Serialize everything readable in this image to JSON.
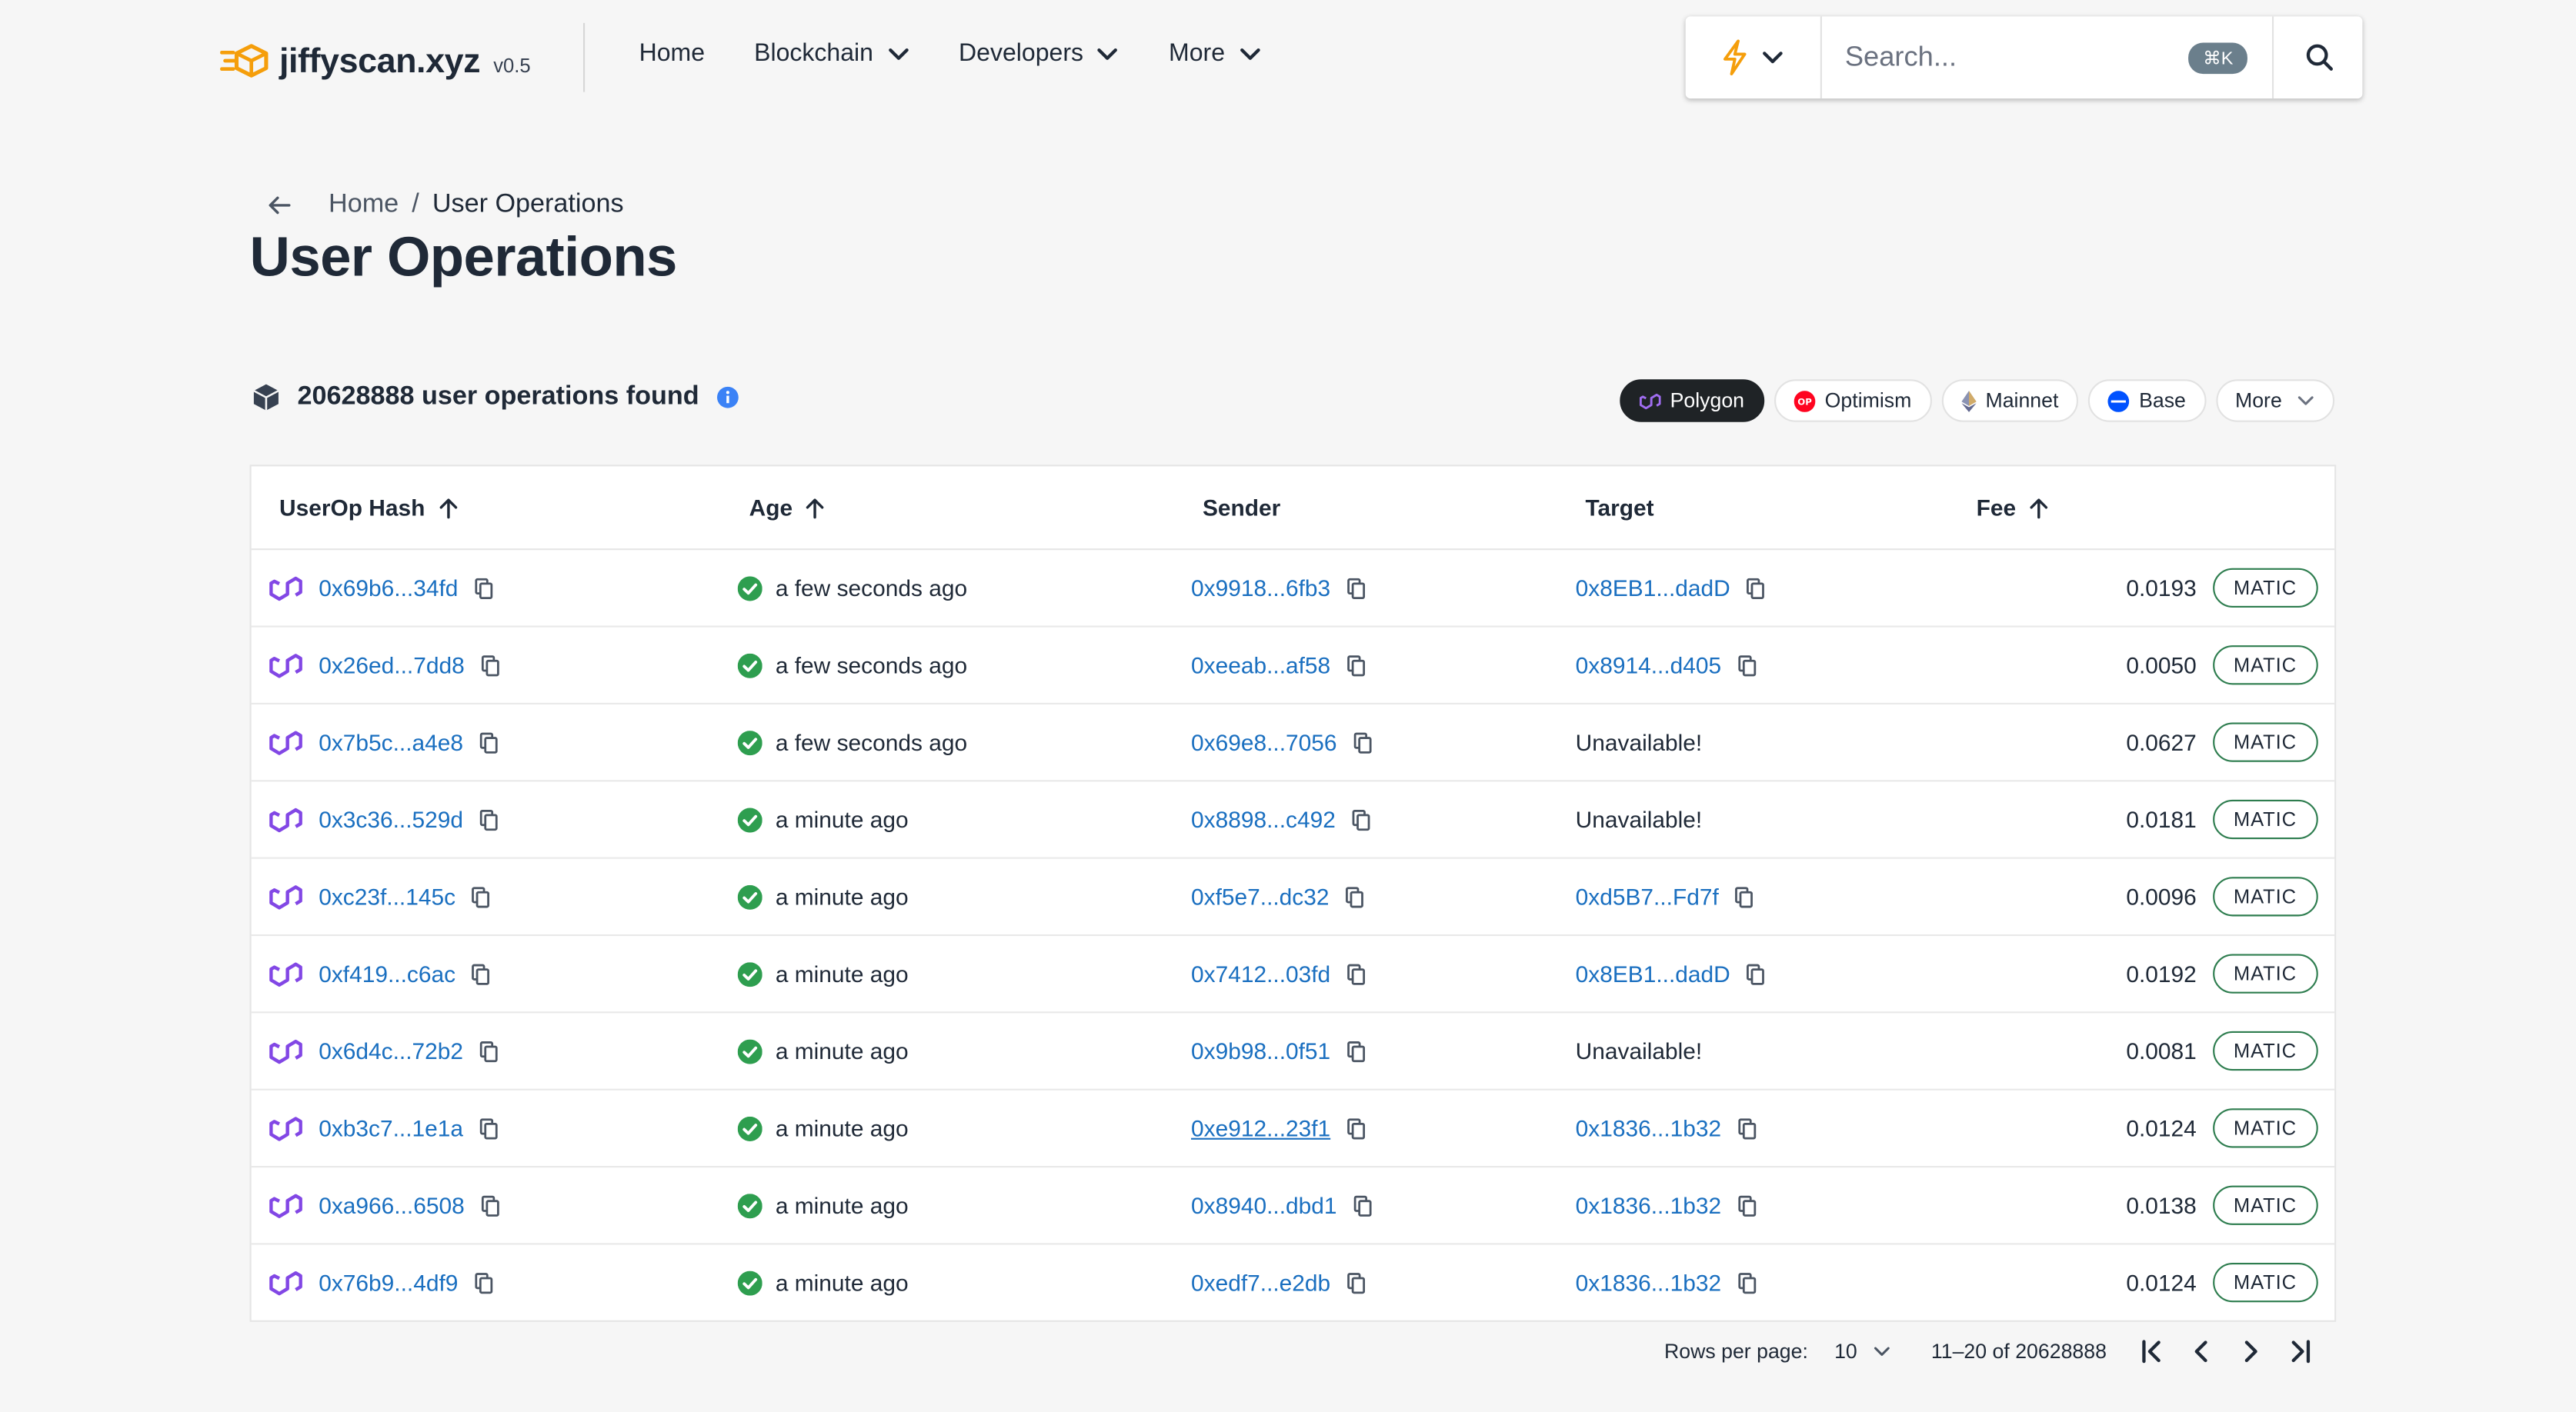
{
  "app": {
    "logo_name": "jiffyscan.xyz",
    "version": "v0.5",
    "brand_color": "#f59e0b"
  },
  "nav": {
    "items": [
      {
        "label": "Home",
        "has_dropdown": false
      },
      {
        "label": "Blockchain",
        "has_dropdown": true
      },
      {
        "label": "Developers",
        "has_dropdown": true
      },
      {
        "label": "More",
        "has_dropdown": true
      }
    ]
  },
  "search": {
    "placeholder": "Search...",
    "shortcut": "⌘K",
    "chain_icon": "lightning-icon"
  },
  "breadcrumb": {
    "home": "Home",
    "separator": "/",
    "current": "User Operations"
  },
  "page": {
    "title": "User Operations"
  },
  "summary": {
    "text": "20628888 user operations found"
  },
  "networks": {
    "items": [
      {
        "label": "Polygon",
        "active": true,
        "color": "#8247e5"
      },
      {
        "label": "Optimism",
        "active": false,
        "color": "#ff0420"
      },
      {
        "label": "Mainnet",
        "active": false,
        "color": "#627eea"
      },
      {
        "label": "Base",
        "active": false,
        "color": "#0052ff"
      },
      {
        "label": "More",
        "active": false,
        "color": ""
      }
    ]
  },
  "table": {
    "headers": {
      "hash": "UserOp Hash",
      "age": "Age",
      "sender": "Sender",
      "target": "Target",
      "fee": "Fee"
    },
    "rows": [
      {
        "hash": "0x69b6...34fd",
        "age": "a few seconds ago",
        "sender": "0x9918...6fb3",
        "target": "0x8EB1...dadD",
        "target_available": true,
        "fee": "0.0193",
        "unit": "MATIC"
      },
      {
        "hash": "0x26ed...7dd8",
        "age": "a few seconds ago",
        "sender": "0xeeab...af58",
        "target": "0x8914...d405",
        "target_available": true,
        "fee": "0.0050",
        "unit": "MATIC"
      },
      {
        "hash": "0x7b5c...a4e8",
        "age": "a few seconds ago",
        "sender": "0x69e8...7056",
        "target": "Unavailable!",
        "target_available": false,
        "fee": "0.0627",
        "unit": "MATIC"
      },
      {
        "hash": "0x3c36...529d",
        "age": "a minute ago",
        "sender": "0x8898...c492",
        "target": "Unavailable!",
        "target_available": false,
        "fee": "0.0181",
        "unit": "MATIC"
      },
      {
        "hash": "0xc23f...145c",
        "age": "a minute ago",
        "sender": "0xf5e7...dc32",
        "target": "0xd5B7...Fd7f",
        "target_available": true,
        "fee": "0.0096",
        "unit": "MATIC"
      },
      {
        "hash": "0xf419...c6ac",
        "age": "a minute ago",
        "sender": "0x7412...03fd",
        "target": "0x8EB1...dadD",
        "target_available": true,
        "fee": "0.0192",
        "unit": "MATIC"
      },
      {
        "hash": "0x6d4c...72b2",
        "age": "a minute ago",
        "sender": "0x9b98...0f51",
        "target": "Unavailable!",
        "target_available": false,
        "fee": "0.0081",
        "unit": "MATIC"
      },
      {
        "hash": "0xb3c7...1e1a",
        "age": "a minute ago",
        "sender": "0xe912...23f1",
        "sender_hovered": true,
        "target": "0x1836...1b32",
        "target_available": true,
        "fee": "0.0124",
        "unit": "MATIC"
      },
      {
        "hash": "0xa966...6508",
        "age": "a minute ago",
        "sender": "0x8940...dbd1",
        "target": "0x1836...1b32",
        "target_available": true,
        "fee": "0.0138",
        "unit": "MATIC"
      },
      {
        "hash": "0x76b9...4df9",
        "age": "a minute ago",
        "sender": "0xedf7...e2db",
        "target": "0x1836...1b32",
        "target_available": true,
        "fee": "0.0124",
        "unit": "MATIC"
      }
    ]
  },
  "pagination": {
    "rows_per_page_label": "Rows per page:",
    "rows_per_page": "10",
    "range": "11–20 of 20628888"
  },
  "colors": {
    "link": "#1a6fc0",
    "status_ok": "#2e9e4f",
    "polygon": "#8247e5",
    "info": "#3b82f6"
  }
}
